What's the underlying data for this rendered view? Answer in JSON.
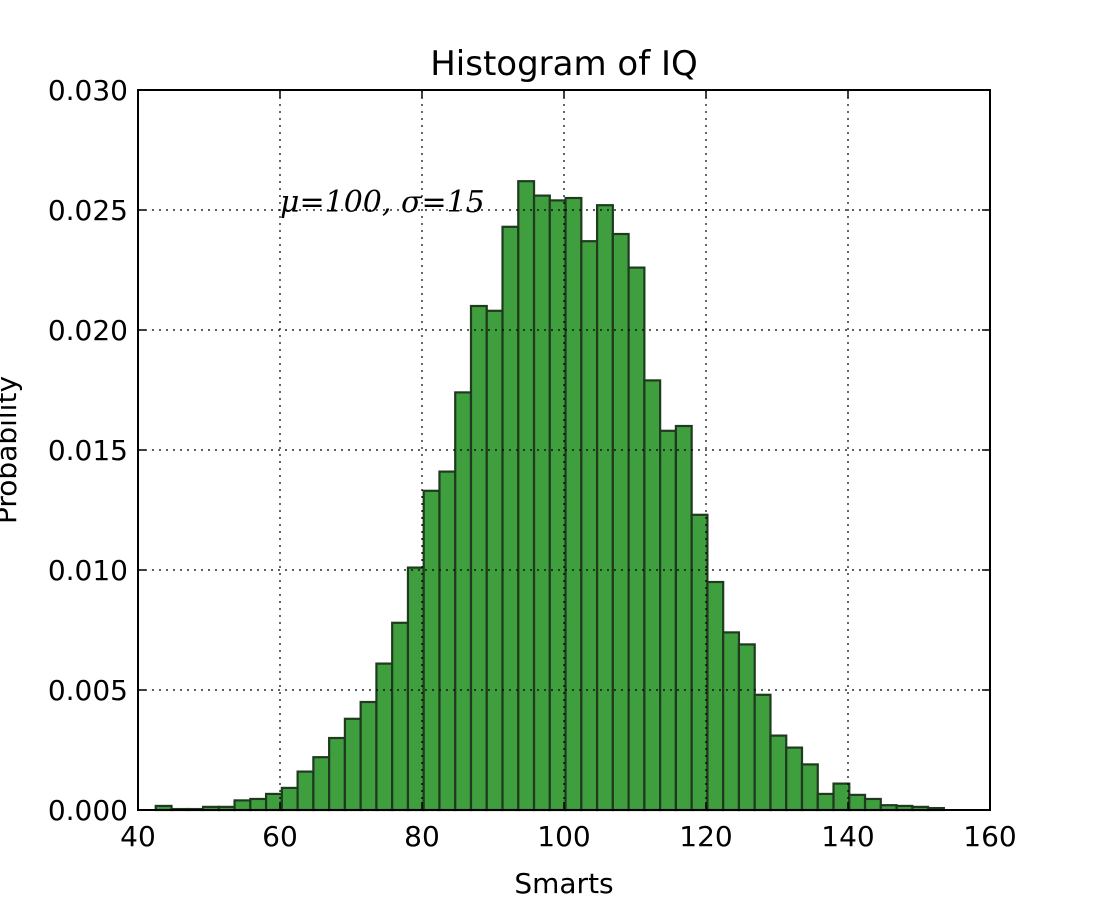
{
  "chart_data": {
    "type": "histogram",
    "title": "Histogram of IQ",
    "xlabel": "Smarts",
    "ylabel": "Probability",
    "annotation": "μ=100,  σ=15",
    "bins": [
      42.5,
      44.72,
      46.94,
      49.16,
      51.38,
      53.6,
      55.82,
      58.04,
      60.26,
      62.48,
      64.7,
      66.92,
      69.14,
      71.36,
      73.58,
      75.8,
      78.02,
      80.24,
      82.46,
      84.68,
      86.9,
      89.12,
      91.34,
      93.56,
      95.78,
      98,
      100.22,
      102.44,
      104.66,
      106.88,
      109.1,
      111.32,
      113.54,
      115.76,
      117.98,
      120.2,
      122.42,
      124.64,
      126.86,
      129.08,
      131.3,
      133.52,
      135.74,
      137.96,
      140.18,
      142.4,
      144.62,
      146.84,
      149.06,
      151.28,
      153.5
    ],
    "values": [
      0.00017,
      4e-05,
      4e-05,
      0.00013,
      0.00013,
      0.0004,
      0.00046,
      0.00067,
      0.00092,
      0.0016,
      0.0022,
      0.003,
      0.0038,
      0.0045,
      0.0061,
      0.0078,
      0.0101,
      0.0133,
      0.0141,
      0.0174,
      0.021,
      0.0208,
      0.0243,
      0.0262,
      0.0256,
      0.0254,
      0.0255,
      0.0237,
      0.0252,
      0.024,
      0.0226,
      0.0179,
      0.0158,
      0.016,
      0.0123,
      0.0095,
      0.0074,
      0.0069,
      0.0048,
      0.0031,
      0.0026,
      0.0019,
      0.00067,
      0.0011,
      0.00063,
      0.00046,
      0.0002,
      0.00017,
      0.00013,
      8e-05
    ],
    "color": "#3f9f3f",
    "xlim": [
      40,
      160
    ],
    "xticks": [
      40,
      60,
      80,
      100,
      120,
      140,
      160
    ],
    "ylim": [
      0,
      0.03
    ],
    "yticks": [
      {
        "value": 0,
        "label": "0.000"
      },
      {
        "value": 0.005,
        "label": "0.005"
      },
      {
        "value": 0.01,
        "label": "0.010"
      },
      {
        "value": 0.015,
        "label": "0.015"
      },
      {
        "value": 0.02,
        "label": "0.020"
      },
      {
        "value": 0.025,
        "label": "0.025"
      },
      {
        "value": 0.03,
        "label": "0.030"
      }
    ],
    "grid": true
  }
}
